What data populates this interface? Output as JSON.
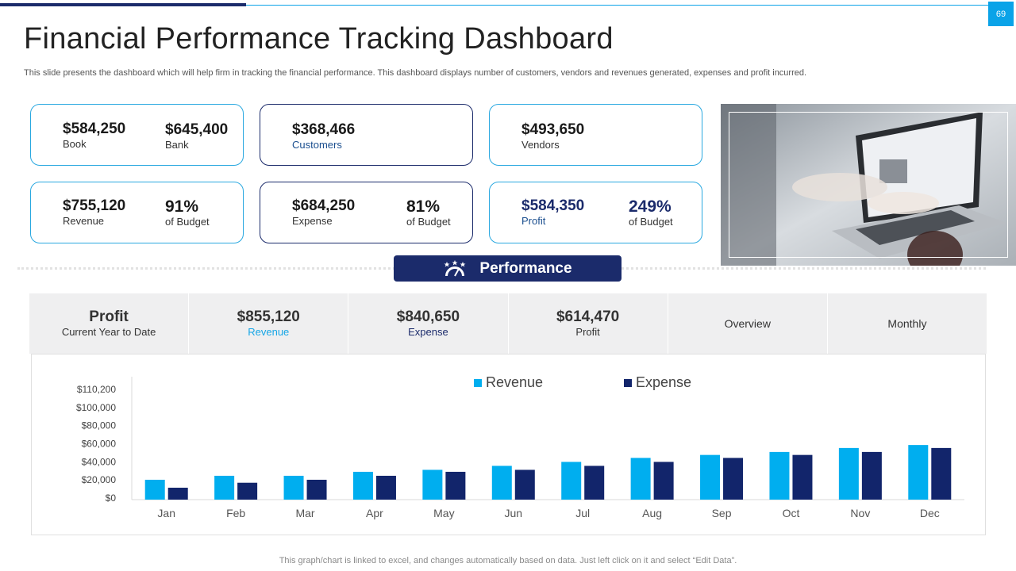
{
  "page_number": "69",
  "title": "Financial Performance Tracking Dashboard",
  "subtitle": "This slide presents the dashboard which will help firm in tracking the financial performance. This dashboard displays number of customers, vendors and revenues generated, expenses and profit incurred.",
  "cards": {
    "book": {
      "value": "$584,250",
      "label": "Book"
    },
    "bank": {
      "value": "$645,400",
      "label": "Bank"
    },
    "customers": {
      "value": "$368,466",
      "label": "Customers"
    },
    "vendors": {
      "value": "$493,650",
      "label": "Vendors"
    },
    "revenue": {
      "value": "$755,120",
      "label": "Revenue",
      "pct": "91%",
      "pct_label": "of Budget"
    },
    "expense": {
      "value": "$684,250",
      "label": "Expense",
      "pct": "81%",
      "pct_label": "of Budget"
    },
    "profit": {
      "value": "$584,350",
      "label": "Profit",
      "pct": "249%",
      "pct_label": "of Budget"
    }
  },
  "performance_label": "Performance",
  "summary": {
    "profit_title": "Profit",
    "profit_sub": "Current  Year to Date",
    "revenue_value": "$855,120",
    "revenue_label": "Revenue",
    "expense_value": "$840,650",
    "expense_label": "Expense",
    "profit_value": "$614,470",
    "profit_label": "Profit",
    "overview": "Overview",
    "monthly": "Monthly"
  },
  "colors": {
    "revenue": "#00aeef",
    "expense": "#12256b",
    "navy": "#1b2b6b",
    "accent": "#0aa3e8"
  },
  "chart_data": {
    "type": "bar",
    "categories": [
      "Jan",
      "Feb",
      "Mar",
      "Apr",
      "May",
      "Jun",
      "Jul",
      "Aug",
      "Sep",
      "Oct",
      "Nov",
      "Dec"
    ],
    "series": [
      {
        "name": "Revenue",
        "values": [
          20000,
          24000,
          24000,
          28000,
          30000,
          34000,
          38000,
          42000,
          45000,
          48000,
          52000,
          55000
        ]
      },
      {
        "name": "Expense",
        "values": [
          12000,
          17000,
          20000,
          24000,
          28000,
          30000,
          34000,
          38000,
          42000,
          45000,
          48000,
          52000
        ]
      }
    ],
    "ytick_labels": [
      "$110,200",
      "$100,000",
      "$80,000",
      "$60,000",
      "$40,000",
      "$20,000",
      "$0"
    ],
    "xlabel": "",
    "ylabel": "",
    "legend": "top-center"
  },
  "footnote": "This graph/chart is linked to excel,  and changes automatically based on data. Just left click on it and select “Edit Data”."
}
